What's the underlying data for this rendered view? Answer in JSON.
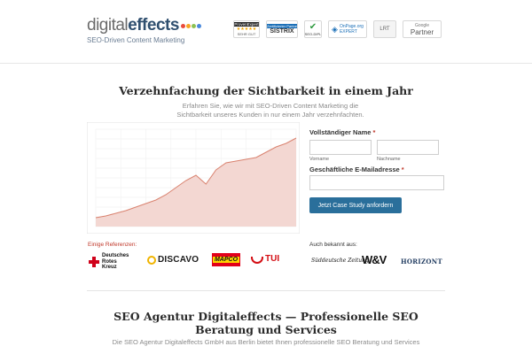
{
  "header": {
    "logo": {
      "light": "digital",
      "bold": "effects",
      "tagline": "SEO-Driven Content Marketing",
      "dot_colors": [
        "#e94b3c",
        "#f6a623",
        "#8cc152",
        "#4a89dc"
      ]
    },
    "badges": {
      "proven_expert": {
        "top": "ProvenExpert",
        "stars": "★★★★★",
        "sub": "SEHR GUT"
      },
      "sistrix": {
        "top": "Zertifizierter Partner",
        "main": "SISTRIX"
      },
      "seo_diplom": {
        "label": "SEO-DIPL"
      },
      "onpage": {
        "line1": "OnPage.org",
        "line2": "EXPERT"
      },
      "lrt": {
        "label": "LRT"
      },
      "google": {
        "line1": "Google",
        "line2": "Partner"
      }
    }
  },
  "hero": {
    "title": "Verzehnfachung der Sichtbarkeit in einem Jahr",
    "subtitle": "Erfahren Sie, wie wir mit SEO-Driven Content Marketing die Sichtbarkeit unseres Kunden in nur einem Jahr verzehnfachten."
  },
  "chart_data": {
    "type": "area",
    "x": [
      0,
      5,
      10,
      15,
      20,
      25,
      30,
      35,
      40,
      45,
      50,
      55,
      60,
      65,
      70,
      75,
      80,
      85,
      90,
      95,
      100
    ],
    "values": [
      1,
      1.2,
      1.5,
      1.8,
      2.2,
      2.6,
      3.0,
      3.6,
      4.4,
      5.2,
      5.8,
      4.8,
      6.4,
      7.2,
      7.4,
      7.6,
      7.8,
      8.4,
      9.0,
      9.4,
      10
    ],
    "ylim": [
      0,
      11
    ],
    "grid": true,
    "fill_color": "#f3d7d2",
    "line_color": "#d9826f"
  },
  "form": {
    "full_name_label": "Vollständiger Name",
    "required_mark": "*",
    "first_name_sub": "Vorname",
    "last_name_sub": "Nachname",
    "email_label": "Geschäftliche E-Mailadresse",
    "submit_label": "Jetzt Case Study anfordern"
  },
  "references": {
    "title": "Einige Referenzen:",
    "drk": "Deutsches\nRotes\nKreuz",
    "discavo": "DISCAVO",
    "mapco": "MAPCO",
    "tui": "TUI"
  },
  "press": {
    "title": "Auch bekannt aus:",
    "sz": "Süddeutsche Zeitung",
    "wv": "W&V",
    "horizont": "HORIZONT"
  },
  "section": {
    "title": "SEO Agentur Digitaleffects — Professionelle SEO Beratung und Services",
    "subtitle": "Die SEO Agentur Digitaleffects GmbH aus Berlin bietet Ihnen professionelle SEO Beratung und Services"
  }
}
